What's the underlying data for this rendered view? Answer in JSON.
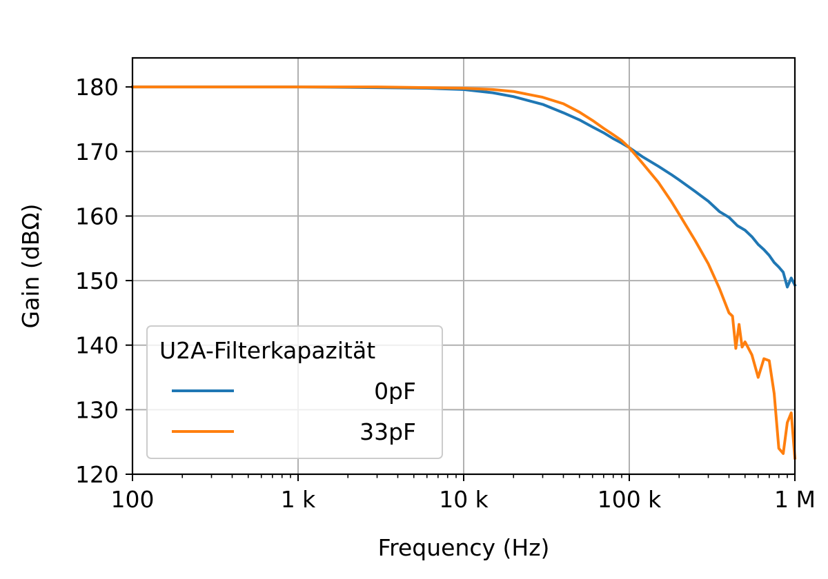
{
  "chart_data": {
    "type": "line",
    "title": "",
    "xlabel": "Frequency (Hz)",
    "ylabel": "Gain (dBΩ)",
    "x_scale": "log",
    "xlim": [
      100,
      1000000
    ],
    "ylim": [
      120,
      184.5
    ],
    "grid": true,
    "x_ticks": [
      100,
      1000,
      10000,
      100000,
      1000000
    ],
    "x_tick_labels": [
      "100",
      "1 k",
      "10 k",
      "100 k",
      "1 M"
    ],
    "y_ticks": [
      120,
      130,
      140,
      150,
      160,
      170,
      180
    ],
    "y_tick_labels": [
      "120",
      "130",
      "140",
      "150",
      "160",
      "170",
      "180"
    ],
    "legend": {
      "title": "U2A-Filterkapazität",
      "placement": "lower-left"
    },
    "series": [
      {
        "name": "0pF",
        "color": "#1f77b4",
        "x": [
          100,
          1000,
          3000,
          6000,
          10000,
          15000,
          20000,
          30000,
          40000,
          50000,
          60000,
          70000,
          80000,
          90000,
          100000,
          120000,
          150000,
          180000,
          200000,
          250000,
          300000,
          350000,
          400000,
          450000,
          500000,
          550000,
          600000,
          650000,
          700000,
          750000,
          800000,
          850000,
          900000,
          950000,
          1000000
        ],
        "y": [
          180,
          180,
          179.9,
          179.8,
          179.6,
          179.1,
          178.5,
          177.3,
          176,
          174.9,
          173.8,
          172.9,
          172,
          171.3,
          170.6,
          169.2,
          167.7,
          166.4,
          165.6,
          163.8,
          162.3,
          160.7,
          159.8,
          158.5,
          157.8,
          156.8,
          155.6,
          154.8,
          153.9,
          152.8,
          152.1,
          151.3,
          149,
          150.4,
          149.3
        ]
      },
      {
        "name": "33pF",
        "color": "#ff7f0e",
        "x": [
          100,
          1000,
          3000,
          6000,
          10000,
          15000,
          20000,
          30000,
          40000,
          50000,
          60000,
          70000,
          80000,
          90000,
          100000,
          120000,
          150000,
          180000,
          200000,
          250000,
          300000,
          350000,
          400000,
          420000,
          440000,
          460000,
          480000,
          500000,
          550000,
          600000,
          650000,
          700000,
          750000,
          800000,
          850000,
          900000,
          950000,
          1000000
        ],
        "y": [
          180,
          180,
          180,
          179.9,
          179.8,
          179.6,
          179.3,
          178.4,
          177.4,
          176.1,
          174.8,
          173.6,
          172.6,
          171.7,
          170.6,
          168.2,
          165.2,
          162.2,
          160.3,
          156.2,
          152.6,
          148.8,
          145,
          144.5,
          139.5,
          143.2,
          139.7,
          140.5,
          138.5,
          135,
          137.9,
          137.6,
          132.5,
          124,
          123.2,
          128,
          129.5,
          122.5
        ]
      }
    ]
  }
}
